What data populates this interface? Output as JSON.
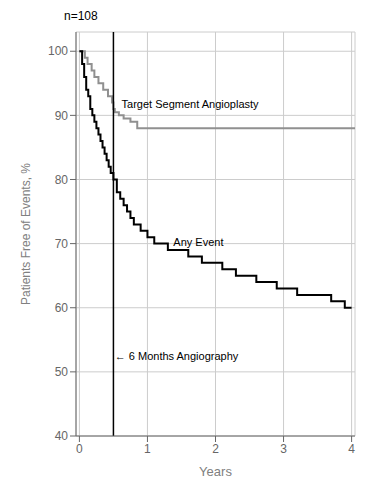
{
  "chart_data": {
    "type": "step",
    "subtitle": "n=108",
    "x_label": "Years",
    "y_label": "Patients Free of Events, %",
    "xlim": [
      -0.05,
      4.05
    ],
    "ylim": [
      40,
      103
    ],
    "xticks": [
      0,
      1,
      2,
      3,
      4
    ],
    "yticks": [
      40,
      50,
      60,
      70,
      80,
      90,
      100
    ],
    "grid": true,
    "series": [
      {
        "color": "#909090",
        "x": [
          0,
          0.08,
          0.12,
          0.18,
          0.22,
          0.28,
          0.35,
          0.42,
          0.48,
          0.5,
          0.52,
          0.58,
          0.65,
          0.75,
          0.85,
          4.05
        ],
        "values": [
          100,
          99,
          98,
          97,
          96,
          95,
          94,
          93,
          92,
          91,
          90.5,
          90,
          89.5,
          89,
          88,
          88
        ]
      },
      {
        "color": "#000000",
        "x": [
          0,
          0.04,
          0.07,
          0.1,
          0.13,
          0.16,
          0.19,
          0.22,
          0.25,
          0.28,
          0.31,
          0.34,
          0.37,
          0.4,
          0.43,
          0.46,
          0.5,
          0.55,
          0.6,
          0.65,
          0.7,
          0.75,
          0.8,
          0.85,
          0.9,
          0.95,
          1.0,
          1.1,
          1.2,
          1.3,
          1.4,
          1.5,
          1.6,
          1.7,
          1.8,
          1.9,
          2.0,
          2.1,
          2.2,
          2.3,
          2.4,
          2.5,
          2.6,
          2.7,
          2.8,
          2.9,
          3.0,
          3.1,
          3.2,
          3.3,
          3.4,
          3.5,
          3.6,
          3.7,
          3.8,
          3.9,
          4.0
        ],
        "values": [
          100,
          98,
          96,
          94,
          93,
          91,
          90,
          89,
          88,
          87,
          86,
          85,
          84,
          83,
          82,
          81,
          80,
          78,
          77,
          76,
          75,
          74,
          73,
          73,
          72,
          72,
          71,
          70,
          70,
          69,
          69,
          69,
          68,
          68,
          67,
          67,
          67,
          66,
          66,
          65,
          65,
          65,
          64,
          64,
          64,
          63,
          63,
          63,
          62,
          62,
          62,
          62,
          62,
          61,
          61,
          60,
          60
        ]
      }
    ],
    "vlines": [
      {
        "x": 0.5,
        "color": "#000000"
      }
    ],
    "annotations": [
      {
        "text": "Target Segment Angioplasty",
        "x": 0.62,
        "y": 91.8
      },
      {
        "text": "Any Event",
        "x": 1.38,
        "y": 70.2
      },
      {
        "text": "← 6 Months Angiography",
        "x": 0.52,
        "y": 52.5
      }
    ]
  }
}
